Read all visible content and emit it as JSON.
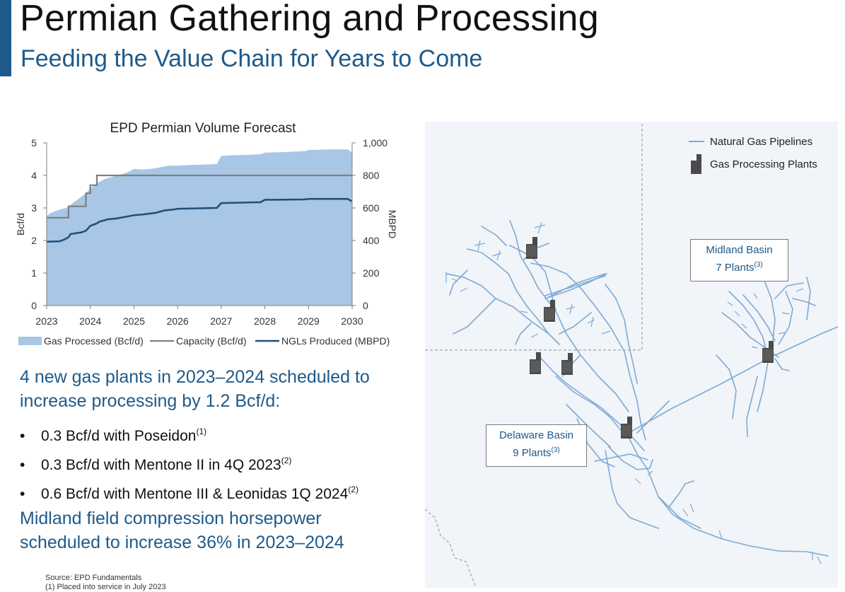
{
  "header": {
    "title": "Permian Gathering and Processing",
    "subtitle": "Feeding the Value Chain for Years to Come"
  },
  "chart_data": {
    "type": "area",
    "title": "EPD Permian Volume Forecast",
    "ylabel": "Bcf/d",
    "y2label": "MBPD",
    "ylim": [
      0,
      5
    ],
    "y2lim": [
      0,
      1000
    ],
    "xlim": [
      2023,
      2030
    ],
    "x_ticks": [
      "2023",
      "2024",
      "2025",
      "2026",
      "2027",
      "2028",
      "2029",
      "2030"
    ],
    "y_ticks": [
      "0",
      "1",
      "2",
      "3",
      "4",
      "5"
    ],
    "y2_ticks": [
      "0",
      "200",
      "400",
      "600",
      "800",
      "1,000"
    ],
    "grid": false,
    "legend_position": "bottom",
    "legend": [
      "Gas Processed (Bcf/d)",
      "Capacity (Bcf/d)",
      "NGLs Produced (MBPD)"
    ],
    "series": [
      {
        "name": "Gas Processed (Bcf/d)",
        "axis": "left",
        "color": "#a8c6e5",
        "x": [
          2023.0,
          2023.1,
          2023.2,
          2023.3,
          2023.45,
          2023.5,
          2023.6,
          2023.75,
          2023.9,
          2024.0,
          2024.1,
          2024.2,
          2024.35,
          2024.5,
          2024.65,
          2024.75,
          2024.9,
          2025.0,
          2025.2,
          2025.4,
          2025.6,
          2025.8,
          2025.9,
          2026.0,
          2026.3,
          2026.6,
          2026.9,
          2027.0,
          2027.3,
          2027.6,
          2027.9,
          2028.0,
          2028.5,
          2028.95,
          2029.0,
          2029.5,
          2029.9,
          2030.0
        ],
        "values": [
          2.75,
          2.85,
          2.9,
          2.95,
          3.0,
          3.05,
          3.15,
          3.3,
          3.45,
          3.6,
          3.7,
          3.8,
          3.9,
          3.95,
          4.02,
          4.05,
          4.12,
          4.2,
          4.18,
          4.2,
          4.25,
          4.3,
          4.3,
          4.3,
          4.32,
          4.33,
          4.35,
          4.6,
          4.62,
          4.63,
          4.65,
          4.7,
          4.72,
          4.75,
          4.78,
          4.8,
          4.8,
          4.7
        ]
      },
      {
        "name": "Capacity (Bcf/d)",
        "axis": "left",
        "color": "#7f7f7f",
        "x": [
          2023.0,
          2023.5,
          2023.5,
          2023.9,
          2023.9,
          2024.0,
          2024.0,
          2024.15,
          2024.15,
          2030.0
        ],
        "values": [
          2.7,
          2.7,
          3.05,
          3.05,
          3.45,
          3.45,
          3.7,
          3.7,
          4.0,
          4.0
        ]
      },
      {
        "name": "NGLs Produced (MBPD)",
        "axis": "right",
        "color": "#1f4e79",
        "x": [
          2023.0,
          2023.3,
          2023.4,
          2023.5,
          2023.55,
          2023.8,
          2023.9,
          2024.0,
          2024.05,
          2024.15,
          2024.2,
          2024.4,
          2024.6,
          2024.8,
          2025.0,
          2025.2,
          2025.5,
          2025.7,
          2025.9,
          2026.0,
          2026.9,
          2027.0,
          2027.9,
          2028.0,
          2028.9,
          2029.0,
          2029.9,
          2030.0
        ],
        "values": [
          392,
          395,
          405,
          420,
          440,
          450,
          460,
          490,
          495,
          505,
          515,
          530,
          535,
          545,
          555,
          560,
          570,
          585,
          590,
          595,
          600,
          630,
          635,
          650,
          652,
          655,
          655,
          640
        ]
      }
    ]
  },
  "content": {
    "headline1": "4 new gas plants in 2023–2024 scheduled to increase processing by 1.2 Bcf/d:",
    "bullets": [
      {
        "text": "0.3 Bcf/d with Poseidon",
        "note": "(1)"
      },
      {
        "text": "0.3 Bcf/d with Mentone II in 4Q 2023",
        "note": "(2)"
      },
      {
        "text": "0.6 Bcf/d with Mentone III & Leonidas 1Q 2024",
        "note": "(2)"
      }
    ],
    "bullet_symbol": "•",
    "headline2": "Midland field compression horsepower scheduled to increase 36% in 2023–2024"
  },
  "footnotes": {
    "source": "Source:  EPD Fundamentals",
    "note1": "(1)  Placed into service in July 2023"
  },
  "map": {
    "legend": {
      "pipelines": "Natural Gas Pipelines",
      "plants": "Gas Processing Plants"
    },
    "pipeline_color": "#7eaad6",
    "plant_color": "#4a4a4a",
    "midland": {
      "name": "Midland Basin",
      "plants": "7 Plants",
      "note": "(3)"
    },
    "delaware": {
      "name": "Delaware Basin",
      "plants": "9 Plants",
      "note": "(3)"
    }
  }
}
